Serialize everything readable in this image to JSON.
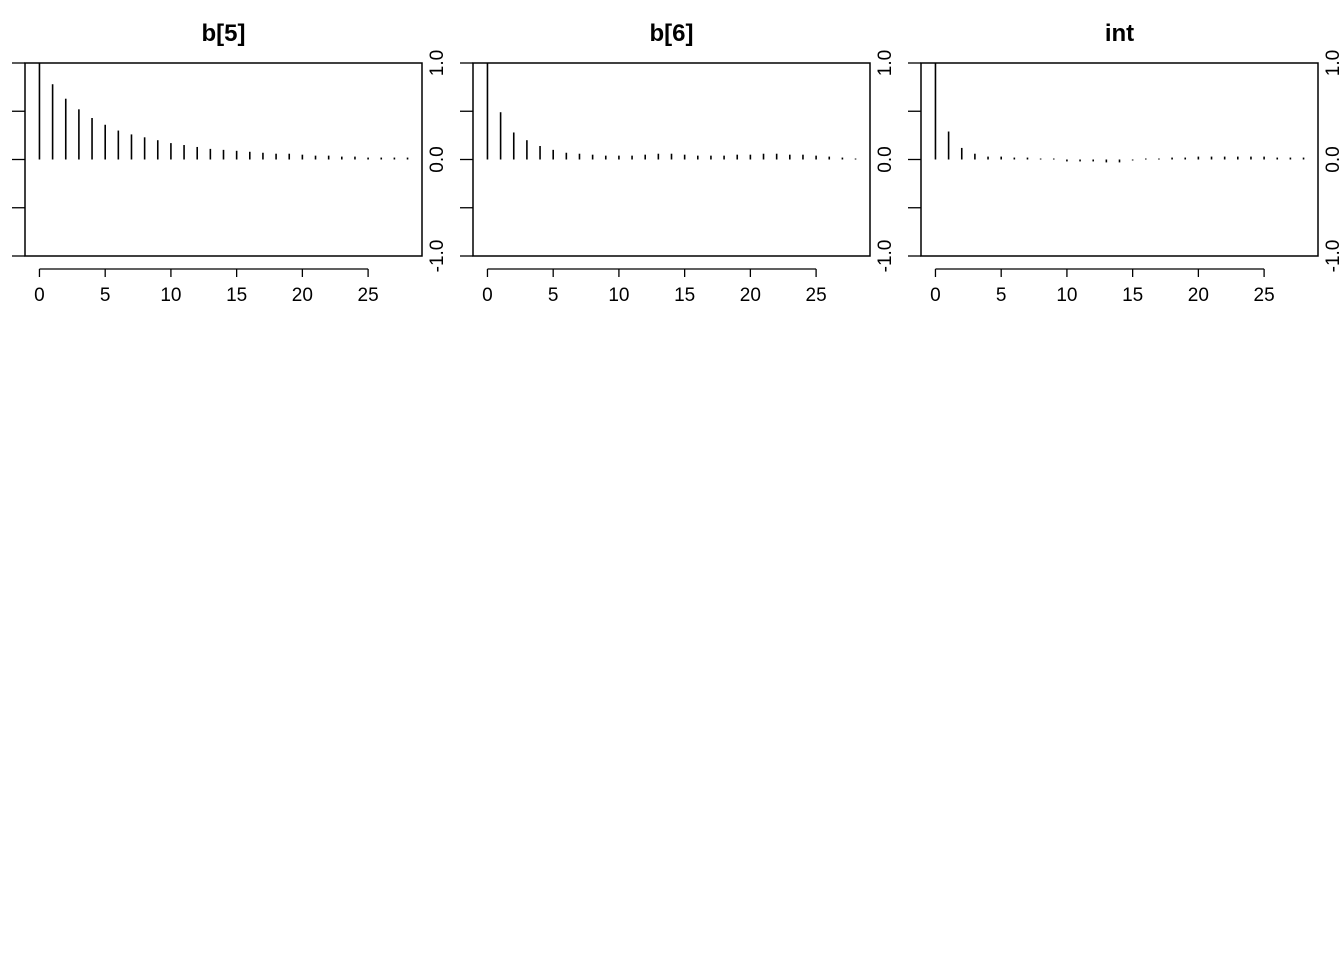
{
  "chart_data": [
    {
      "type": "bar",
      "title": "b[5]",
      "xlabel": "",
      "ylabel": "",
      "xlim": [
        -1.1,
        29.1
      ],
      "ylim": [
        -1.0,
        1.0
      ],
      "x_ticks": [
        "0",
        "5",
        "10",
        "15",
        "20",
        "25"
      ],
      "y_ticks": [
        "-1.0",
        "0.0",
        "1.0"
      ],
      "x": [
        0,
        1,
        2,
        3,
        4,
        5,
        6,
        7,
        8,
        9,
        10,
        11,
        12,
        13,
        14,
        15,
        16,
        17,
        18,
        19,
        20,
        21,
        22,
        23,
        24,
        25,
        26,
        27,
        28
      ],
      "values": [
        1.0,
        0.78,
        0.63,
        0.52,
        0.43,
        0.36,
        0.3,
        0.26,
        0.23,
        0.2,
        0.17,
        0.15,
        0.13,
        0.11,
        0.1,
        0.09,
        0.08,
        0.07,
        0.06,
        0.06,
        0.05,
        0.04,
        0.04,
        0.03,
        0.03,
        0.02,
        0.02,
        0.02,
        0.02
      ]
    },
    {
      "type": "bar",
      "title": "b[6]",
      "xlabel": "",
      "ylabel": "",
      "xlim": [
        -1.1,
        29.1
      ],
      "ylim": [
        -1.0,
        1.0
      ],
      "x_ticks": [
        "0",
        "5",
        "10",
        "15",
        "20",
        "25"
      ],
      "y_ticks": [
        "-1.0",
        "0.0",
        "1.0"
      ],
      "x": [
        0,
        1,
        2,
        3,
        4,
        5,
        6,
        7,
        8,
        9,
        10,
        11,
        12,
        13,
        14,
        15,
        16,
        17,
        18,
        19,
        20,
        21,
        22,
        23,
        24,
        25,
        26,
        27,
        28
      ],
      "values": [
        1.0,
        0.49,
        0.28,
        0.2,
        0.14,
        0.1,
        0.07,
        0.06,
        0.05,
        0.04,
        0.04,
        0.04,
        0.05,
        0.06,
        0.06,
        0.05,
        0.04,
        0.04,
        0.04,
        0.05,
        0.05,
        0.06,
        0.06,
        0.05,
        0.05,
        0.04,
        0.03,
        0.02,
        0.01
      ]
    },
    {
      "type": "bar",
      "title": "int",
      "xlabel": "",
      "ylabel": "",
      "xlim": [
        -1.1,
        29.1
      ],
      "ylim": [
        -1.0,
        1.0
      ],
      "x_ticks": [
        "0",
        "5",
        "10",
        "15",
        "20",
        "25"
      ],
      "y_ticks": [
        "-1.0",
        "0.0",
        "1.0"
      ],
      "x": [
        0,
        1,
        2,
        3,
        4,
        5,
        6,
        7,
        8,
        9,
        10,
        11,
        12,
        13,
        14,
        15,
        16,
        17,
        18,
        19,
        20,
        21,
        22,
        23,
        24,
        25,
        26,
        27,
        28
      ],
      "values": [
        1.0,
        0.29,
        0.12,
        0.06,
        0.03,
        0.03,
        0.02,
        0.02,
        0.01,
        0.01,
        -0.02,
        -0.02,
        -0.02,
        -0.03,
        -0.03,
        -0.01,
        0.01,
        0.01,
        0.02,
        0.02,
        0.03,
        0.03,
        0.03,
        0.03,
        0.03,
        0.03,
        0.02,
        0.02,
        0.02
      ]
    }
  ]
}
